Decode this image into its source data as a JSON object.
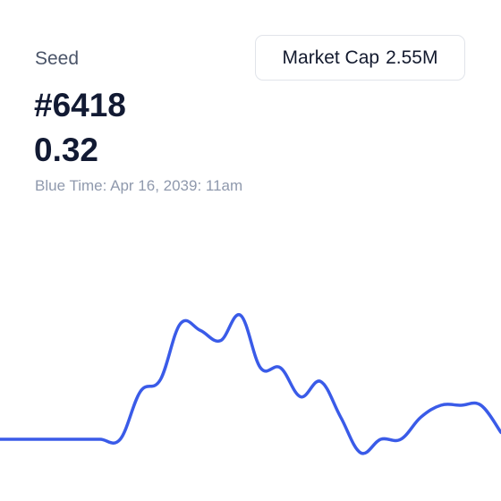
{
  "header": {
    "label": "Seed",
    "token_id": "#6418",
    "price": "0.32",
    "time_prefix": "Blue Time:",
    "time_value": "Apr 16, 2039: 11am"
  },
  "metric_button": {
    "label": "Market Cap",
    "value": "2.55M"
  },
  "colors": {
    "line": "#3a5be8",
    "title": "#121a33",
    "muted": "#8f99ad"
  },
  "chart_data": {
    "type": "line",
    "title": "",
    "xlabel": "",
    "ylabel": "",
    "grid": false,
    "legend": "none",
    "ylim": [
      0,
      1
    ],
    "series": [
      {
        "values": [
          0.1,
          0.1,
          0.1,
          0.1,
          0.1,
          0.1,
          0.1,
          0.38,
          0.45,
          0.78,
          0.74,
          0.68,
          0.83,
          0.52,
          0.52,
          0.35,
          0.44,
          0.23,
          0.02,
          0.1,
          0.1,
          0.23,
          0.3,
          0.3,
          0.3,
          0.14
        ]
      }
    ]
  }
}
